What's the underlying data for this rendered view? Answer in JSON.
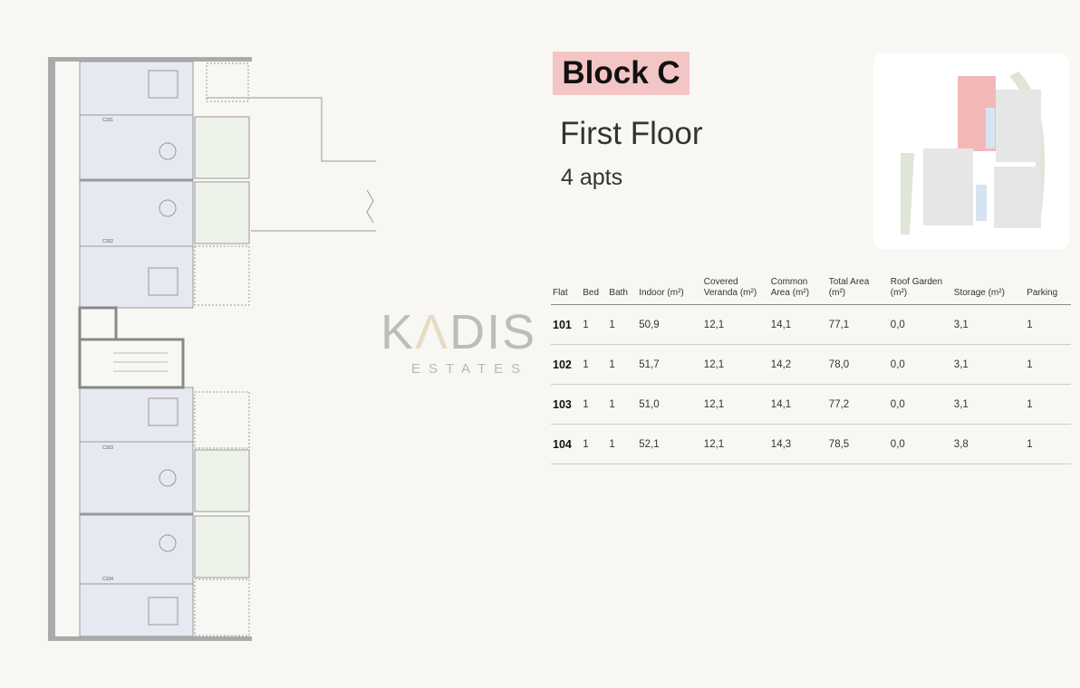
{
  "header": {
    "block": "Block C",
    "floor": "First Floor",
    "apartments": "4 apts"
  },
  "logo": {
    "name": "KADIS",
    "subtitle": "ESTATES"
  },
  "floorplan": {
    "units": [
      "C101",
      "C102",
      "C103",
      "C104"
    ],
    "highlight_color": "#f3c5c5"
  },
  "table": {
    "headers": [
      "Flat",
      "Bed",
      "Bath",
      "Indoor (m²)",
      "Covered Veranda (m²)",
      "Common Area (m²)",
      "Total Area (m²)",
      "Roof Garden (m²)",
      "Storage (m²)",
      "Parking"
    ],
    "rows": [
      [
        "101",
        "1",
        "1",
        "50,9",
        "12,1",
        "14,1",
        "77,1",
        "0,0",
        "3,1",
        "1"
      ],
      [
        "102",
        "1",
        "1",
        "51,7",
        "12,1",
        "14,2",
        "78,0",
        "0,0",
        "3,1",
        "1"
      ],
      [
        "103",
        "1",
        "1",
        "51,0",
        "12,1",
        "14,1",
        "77,2",
        "0,0",
        "3,1",
        "1"
      ],
      [
        "104",
        "1",
        "1",
        "52,1",
        "12,1",
        "14,3",
        "78,5",
        "0,0",
        "3,8",
        "1"
      ]
    ]
  }
}
